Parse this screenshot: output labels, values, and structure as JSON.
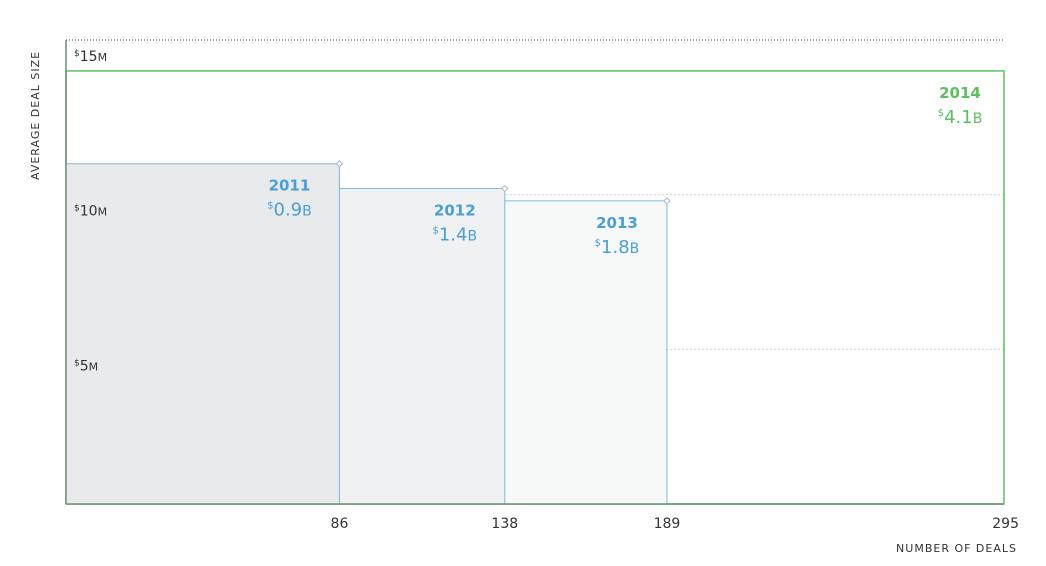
{
  "chart_data": {
    "type": "area",
    "xlabel": "NUMBER OF DEALS",
    "ylabel": "AVERAGE DEAL SIZE",
    "xlim": [
      0,
      295
    ],
    "ylim": [
      0,
      15
    ],
    "x_ticks": [
      "86",
      "138",
      "189",
      "295"
    ],
    "y_ticks": [
      {
        "value": 5,
        "label": "5",
        "prefix": "$",
        "unit": "M"
      },
      {
        "value": 10,
        "label": "10",
        "prefix": "$",
        "unit": "M"
      },
      {
        "value": 15,
        "label": "15",
        "prefix": "$",
        "unit": "M"
      }
    ],
    "series": [
      {
        "name": "2011",
        "deals": 86,
        "avg_deal_size": 11.0,
        "total": "0.9",
        "prefix": "$",
        "unit": "B",
        "color": "#4a9fd4",
        "fill": "#e8eaeb"
      },
      {
        "name": "2012",
        "deals": 138,
        "avg_deal_size": 10.2,
        "total": "1.4",
        "prefix": "$",
        "unit": "B",
        "color": "#4a9fd4",
        "fill": "#f0f1f2"
      },
      {
        "name": "2013",
        "deals": 189,
        "avg_deal_size": 9.8,
        "total": "1.8",
        "prefix": "$",
        "unit": "B",
        "color": "#4a9fd4",
        "fill": "#f7f8f8"
      },
      {
        "name": "2014",
        "deals": 295,
        "avg_deal_size": 14.0,
        "total": "4.1",
        "prefix": "$",
        "unit": "B",
        "color": "#5cc05c",
        "fill": "none"
      }
    ],
    "grid": true
  }
}
